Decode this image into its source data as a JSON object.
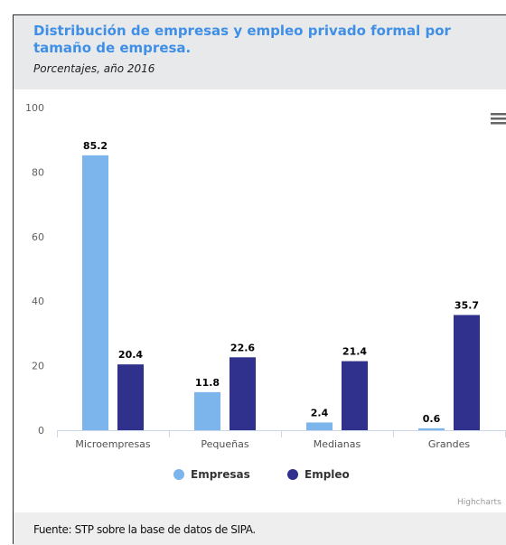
{
  "title": "Distribución de empresas y empleo privado formal por tamaño de empresa.",
  "subtitle": "Porcentajes, año 2016",
  "source": "Fuente: STP sobre la base de datos de SIPA.",
  "credits": "Highcharts",
  "menu_icon": "hamburger-menu-icon",
  "colors": {
    "empresas": "#7cb5ec",
    "empleo": "#2f318c",
    "title": "#3f8fe6",
    "header_bg": "#e8e9eb"
  },
  "chart_data": {
    "type": "bar",
    "categories": [
      "Microempresas",
      "Pequeñas",
      "Medianas",
      "Grandes"
    ],
    "series": [
      {
        "name": "Empresas",
        "values": [
          85.2,
          11.8,
          2.4,
          0.6
        ]
      },
      {
        "name": "Empleo",
        "values": [
          20.4,
          22.6,
          21.4,
          35.7
        ]
      }
    ],
    "ylim": [
      0,
      100
    ],
    "yticks": [
      0,
      20,
      40,
      60,
      80,
      100
    ],
    "legend": "bottom-center",
    "grid": false
  }
}
